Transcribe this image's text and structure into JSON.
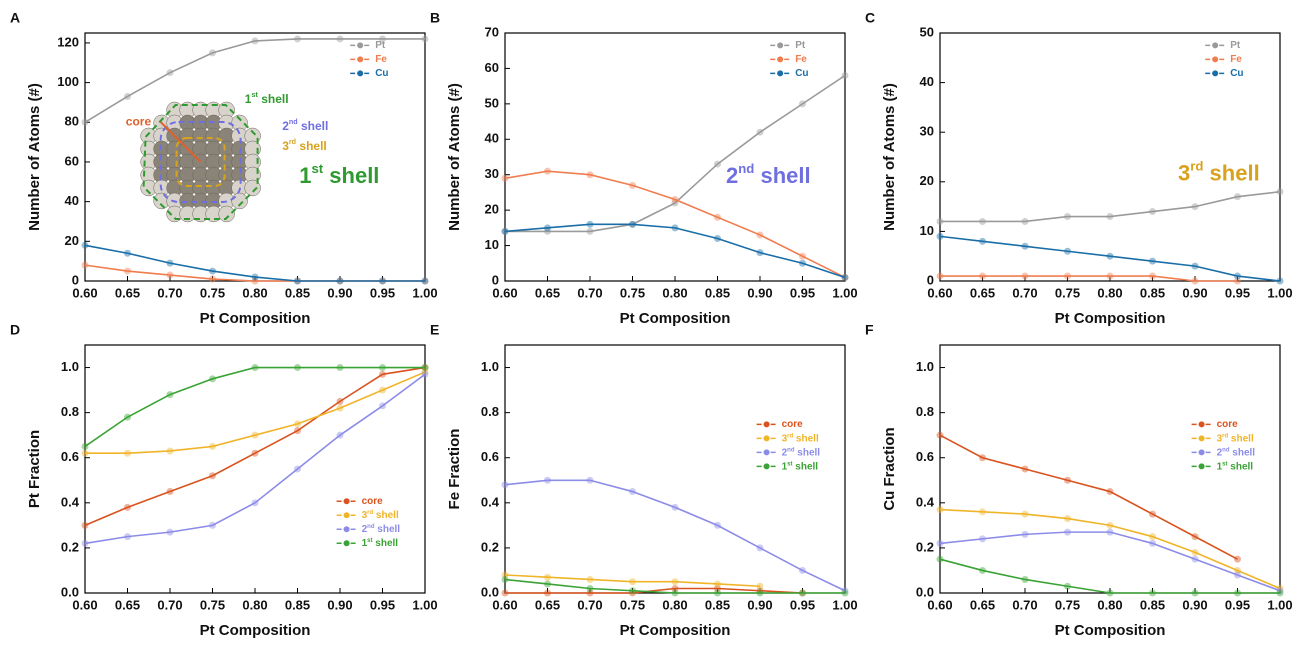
{
  "chart_data": [
    {
      "type": "line",
      "panel_label": "A",
      "xlabel": "Pt Composition",
      "ylabel": "Number of Atoms (#)",
      "x": [
        0.6,
        0.65,
        0.7,
        0.75,
        0.8,
        0.85,
        0.9,
        0.95,
        1.0
      ],
      "xlim": [
        0.6,
        1.0
      ],
      "xticks": [
        {
          "value": 0.6,
          "label": "0.60"
        },
        {
          "value": 0.65,
          "label": "0.65"
        },
        {
          "value": 0.7,
          "label": "0.70"
        },
        {
          "value": 0.75,
          "label": "0.75"
        },
        {
          "value": 0.8,
          "label": "0.80"
        },
        {
          "value": 0.85,
          "label": "0.85"
        },
        {
          "value": 0.9,
          "label": "0.90"
        },
        {
          "value": 0.95,
          "label": "0.95"
        },
        {
          "value": 1.0,
          "label": "1.00"
        }
      ],
      "ylim": [
        0,
        125
      ],
      "yticks": [
        0,
        20,
        40,
        60,
        80,
        100,
        120
      ],
      "legend": "upper right",
      "series": [
        {
          "name": "Pt",
          "color": "#9a9a9a",
          "values": [
            80,
            93,
            105,
            115,
            121,
            122,
            122,
            122,
            122
          ]
        },
        {
          "name": "Fe",
          "color": "#f07d4f",
          "values": [
            8,
            5,
            3,
            1,
            0,
            0,
            0,
            0,
            0
          ]
        },
        {
          "name": "Cu",
          "color": "#1a6ea8",
          "values": [
            18,
            14,
            9,
            5,
            2,
            0,
            0,
            0,
            0
          ]
        }
      ],
      "annotations": [
        {
          "text": "1st shell",
          "color": "#2f9a2f"
        },
        {
          "text": "core",
          "color": "#e0602a"
        },
        {
          "text": "1st shell",
          "color": "#2f9a2f"
        },
        {
          "text": "2nd shell",
          "color": "#6f6fe0"
        },
        {
          "text": "3rd shell",
          "color": "#d9a21e"
        }
      ]
    },
    {
      "type": "line",
      "panel_label": "B",
      "xlabel": "Pt Composition",
      "ylabel": "Number of Atoms (#)",
      "x": [
        0.6,
        0.65,
        0.7,
        0.75,
        0.8,
        0.85,
        0.9,
        0.95,
        1.0
      ],
      "xlim": [
        0.6,
        1.0
      ],
      "xticks": [
        {
          "value": 0.6,
          "label": "0.60"
        },
        {
          "value": 0.65,
          "label": "0.65"
        },
        {
          "value": 0.7,
          "label": "0.70"
        },
        {
          "value": 0.75,
          "label": "0.75"
        },
        {
          "value": 0.8,
          "label": "0.80"
        },
        {
          "value": 0.85,
          "label": "0.85"
        },
        {
          "value": 0.9,
          "label": "0.90"
        },
        {
          "value": 0.95,
          "label": "0.95"
        },
        {
          "value": 1.0,
          "label": "1.00"
        }
      ],
      "ylim": [
        0,
        70
      ],
      "yticks": [
        0,
        10,
        20,
        30,
        40,
        50,
        60,
        70
      ],
      "legend": "upper right",
      "series": [
        {
          "name": "Pt",
          "color": "#9a9a9a",
          "values": [
            14,
            14,
            14,
            16,
            22,
            33,
            42,
            50,
            58
          ]
        },
        {
          "name": "Fe",
          "color": "#f07d4f",
          "values": [
            29,
            31,
            30,
            27,
            23,
            18,
            13,
            7,
            1
          ]
        },
        {
          "name": "Cu",
          "color": "#1a6ea8",
          "values": [
            14,
            15,
            16,
            16,
            15,
            12,
            8,
            5,
            1
          ]
        }
      ],
      "annotations": [
        {
          "text": "2nd shell",
          "color": "#6f6fe0"
        }
      ]
    },
    {
      "type": "line",
      "panel_label": "C",
      "xlabel": "Pt Composition",
      "ylabel": "Number of Atoms (#)",
      "x": [
        0.6,
        0.65,
        0.7,
        0.75,
        0.8,
        0.85,
        0.9,
        0.95,
        1.0
      ],
      "xlim": [
        0.6,
        1.0
      ],
      "xticks": [
        {
          "value": 0.6,
          "label": "0.60"
        },
        {
          "value": 0.65,
          "label": "0.65"
        },
        {
          "value": 0.7,
          "label": "0.70"
        },
        {
          "value": 0.75,
          "label": "0.75"
        },
        {
          "value": 0.8,
          "label": "0.80"
        },
        {
          "value": 0.85,
          "label": "0.85"
        },
        {
          "value": 0.9,
          "label": "0.90"
        },
        {
          "value": 0.95,
          "label": "0.95"
        },
        {
          "value": 1.0,
          "label": "1.00"
        }
      ],
      "ylim": [
        0,
        50
      ],
      "yticks": [
        0,
        10,
        20,
        30,
        40,
        50
      ],
      "legend": "upper right",
      "series": [
        {
          "name": "Pt",
          "color": "#9a9a9a",
          "values": [
            12,
            12,
            12,
            13,
            13,
            14,
            15,
            17,
            18
          ]
        },
        {
          "name": "Fe",
          "color": "#f07d4f",
          "values": [
            1,
            1,
            1,
            1,
            1,
            1,
            0,
            0,
            null
          ]
        },
        {
          "name": "Cu",
          "color": "#1a6ea8",
          "values": [
            9,
            8,
            7,
            6,
            5,
            4,
            3,
            1,
            0
          ]
        }
      ],
      "annotations": [
        {
          "text": "3rd shell",
          "color": "#d9a21e"
        }
      ]
    },
    {
      "type": "line",
      "panel_label": "D",
      "xlabel": "Pt Composition",
      "ylabel": "Pt Fraction",
      "x": [
        0.6,
        0.65,
        0.7,
        0.75,
        0.8,
        0.85,
        0.9,
        0.95,
        1.0
      ],
      "xlim": [
        0.6,
        1.0
      ],
      "xticks": [
        {
          "value": 0.6,
          "label": "0.60"
        },
        {
          "value": 0.65,
          "label": "0.65"
        },
        {
          "value": 0.7,
          "label": "0.70"
        },
        {
          "value": 0.75,
          "label": "0.75"
        },
        {
          "value": 0.8,
          "label": "0.80"
        },
        {
          "value": 0.85,
          "label": "0.85"
        },
        {
          "value": 0.9,
          "label": "0.90"
        },
        {
          "value": 0.95,
          "label": "0.95"
        },
        {
          "value": 1.0,
          "label": "1.00"
        }
      ],
      "ylim": [
        0,
        1.1
      ],
      "yticks": [
        {
          "value": 0,
          "label": "0.0"
        },
        {
          "value": 0.2,
          "label": "0.2"
        },
        {
          "value": 0.4,
          "label": "0.4"
        },
        {
          "value": 0.6,
          "label": "0.6"
        },
        {
          "value": 0.8,
          "label": "0.8"
        },
        {
          "value": 1,
          "label": "1.0"
        }
      ],
      "legend": "lower right",
      "series": [
        {
          "name": "core",
          "color": "#d9531e",
          "values": [
            0.3,
            0.38,
            0.45,
            0.52,
            0.62,
            0.72,
            0.85,
            0.97,
            1.0
          ]
        },
        {
          "name": "3rd shell",
          "color": "#f0b429",
          "values": [
            0.62,
            0.62,
            0.63,
            0.65,
            0.7,
            0.75,
            0.82,
            0.9,
            0.98
          ]
        },
        {
          "name": "2nd shell",
          "color": "#8c8ce8",
          "values": [
            0.22,
            0.25,
            0.27,
            0.3,
            0.4,
            0.55,
            0.7,
            0.83,
            0.97
          ]
        },
        {
          "name": "1st shell",
          "color": "#3aa335",
          "values": [
            0.65,
            0.78,
            0.88,
            0.95,
            1,
            1,
            1,
            1,
            1
          ]
        }
      ]
    },
    {
      "type": "line",
      "panel_label": "E",
      "xlabel": "Pt Composition",
      "ylabel": "Fe Fraction",
      "x": [
        0.6,
        0.65,
        0.7,
        0.75,
        0.8,
        0.85,
        0.9,
        0.95,
        1.0
      ],
      "xlim": [
        0.6,
        1.0
      ],
      "xticks": [
        {
          "value": 0.6,
          "label": "0.60"
        },
        {
          "value": 0.65,
          "label": "0.65"
        },
        {
          "value": 0.7,
          "label": "0.70"
        },
        {
          "value": 0.75,
          "label": "0.75"
        },
        {
          "value": 0.8,
          "label": "0.80"
        },
        {
          "value": 0.85,
          "label": "0.85"
        },
        {
          "value": 0.9,
          "label": "0.90"
        },
        {
          "value": 0.95,
          "label": "0.95"
        },
        {
          "value": 1.0,
          "label": "1.00"
        }
      ],
      "ylim": [
        0,
        1.1
      ],
      "yticks": [
        {
          "value": 0,
          "label": "0.0"
        },
        {
          "value": 0.2,
          "label": "0.2"
        },
        {
          "value": 0.4,
          "label": "0.4"
        },
        {
          "value": 0.6,
          "label": "0.6"
        },
        {
          "value": 0.8,
          "label": "0.8"
        },
        {
          "value": 1,
          "label": "1.0"
        }
      ],
      "legend": "center right",
      "series": [
        {
          "name": "core",
          "color": "#d9531e",
          "values": [
            0,
            0,
            0,
            0,
            0.02,
            0.02,
            0.01,
            0,
            null
          ]
        },
        {
          "name": "3rd shell",
          "color": "#f0b429",
          "values": [
            0.08,
            0.07,
            0.06,
            0.05,
            0.05,
            0.04,
            0.03,
            null,
            null
          ]
        },
        {
          "name": "2nd shell",
          "color": "#8c8ce8",
          "values": [
            0.48,
            0.5,
            0.5,
            0.45,
            0.38,
            0.3,
            0.2,
            0.1,
            0.01
          ]
        },
        {
          "name": "1st shell",
          "color": "#3aa335",
          "values": [
            0.06,
            0.04,
            0.02,
            0.01,
            0,
            0,
            0,
            0,
            0
          ]
        }
      ]
    },
    {
      "type": "line",
      "panel_label": "F",
      "xlabel": "Pt Composition",
      "ylabel": "Cu Fraction",
      "x": [
        0.6,
        0.65,
        0.7,
        0.75,
        0.8,
        0.85,
        0.9,
        0.95,
        1.0
      ],
      "xlim": [
        0.6,
        1.0
      ],
      "xticks": [
        {
          "value": 0.6,
          "label": "0.60"
        },
        {
          "value": 0.65,
          "label": "0.65"
        },
        {
          "value": 0.7,
          "label": "0.70"
        },
        {
          "value": 0.75,
          "label": "0.75"
        },
        {
          "value": 0.8,
          "label": "0.80"
        },
        {
          "value": 0.85,
          "label": "0.85"
        },
        {
          "value": 0.9,
          "label": "0.90"
        },
        {
          "value": 0.95,
          "label": "0.95"
        },
        {
          "value": 1.0,
          "label": "1.00"
        }
      ],
      "ylim": [
        0,
        1.1
      ],
      "yticks": [
        {
          "value": 0,
          "label": "0.0"
        },
        {
          "value": 0.2,
          "label": "0.2"
        },
        {
          "value": 0.4,
          "label": "0.4"
        },
        {
          "value": 0.6,
          "label": "0.6"
        },
        {
          "value": 0.8,
          "label": "0.8"
        },
        {
          "value": 1,
          "label": "1.0"
        }
      ],
      "legend": "center right",
      "series": [
        {
          "name": "core",
          "color": "#d9531e",
          "values": [
            0.7,
            0.6,
            0.55,
            0.5,
            0.45,
            0.35,
            0.25,
            0.15,
            null
          ]
        },
        {
          "name": "3rd shell",
          "color": "#f0b429",
          "values": [
            0.37,
            0.36,
            0.35,
            0.33,
            0.3,
            0.25,
            0.18,
            0.1,
            0.02
          ]
        },
        {
          "name": "2nd shell",
          "color": "#8c8ce8",
          "values": [
            0.22,
            0.24,
            0.26,
            0.27,
            0.27,
            0.22,
            0.15,
            0.08,
            0.01
          ]
        },
        {
          "name": "1st shell",
          "color": "#3aa335",
          "values": [
            0.15,
            0.1,
            0.06,
            0.03,
            0,
            0,
            0,
            0,
            0
          ]
        }
      ]
    }
  ]
}
